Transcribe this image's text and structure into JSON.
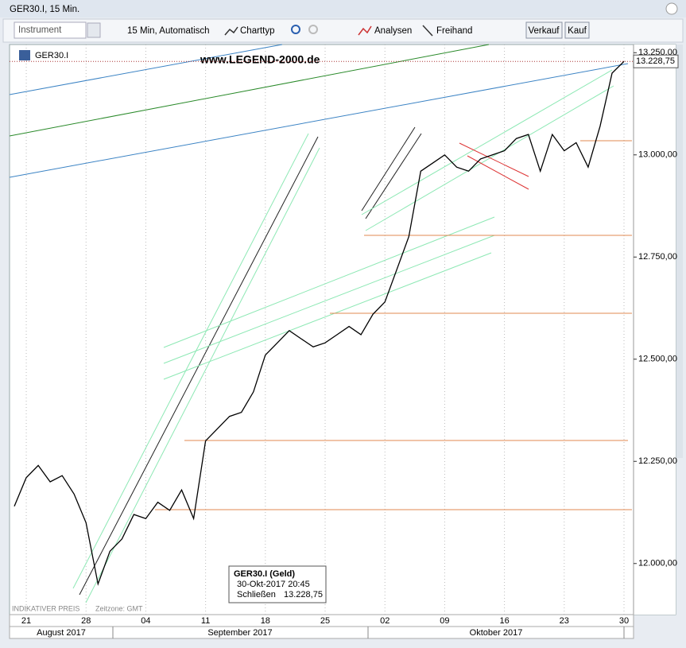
{
  "window_title": "GER30.I, 15 Min.",
  "toolbar": {
    "instrument": "Instrument",
    "interval": "15 Min,  Automatisch",
    "chart_type": "Charttyp",
    "analyses": "Analysen",
    "freehand": "Freihand",
    "sell": "Verkauf",
    "buy": "Kauf"
  },
  "watermark": "www.LEGEND-2000.de",
  "footer": {
    "indicative": "INDIKATIVER PREIS",
    "timezone": "Zeitzone: GMT"
  },
  "tooltip": {
    "title": "GER30.I (Geld)",
    "time": "30-Okt-2017 20:45",
    "close_label": "Schließen",
    "close": "13.228,75"
  },
  "months": [
    "August 2017",
    "September 2017",
    "Oktober 2017"
  ],
  "chart_data": {
    "type": "line",
    "x": [
      "2017-08-18",
      "2017-08-21",
      "2017-08-22",
      "2017-08-23",
      "2017-08-24",
      "2017-08-25",
      "2017-08-28",
      "2017-08-29",
      "2017-08-30",
      "2017-08-31",
      "2017-09-01",
      "2017-09-04",
      "2017-09-05",
      "2017-09-06",
      "2017-09-07",
      "2017-09-08",
      "2017-09-11",
      "2017-09-12",
      "2017-09-13",
      "2017-09-14",
      "2017-09-15",
      "2017-09-18",
      "2017-09-19",
      "2017-09-20",
      "2017-09-21",
      "2017-09-22",
      "2017-09-25",
      "2017-09-26",
      "2017-09-27",
      "2017-09-28",
      "2017-09-29",
      "2017-10-02",
      "2017-10-03",
      "2017-10-04",
      "2017-10-05",
      "2017-10-06",
      "2017-10-09",
      "2017-10-10",
      "2017-10-11",
      "2017-10-12",
      "2017-10-13",
      "2017-10-16",
      "2017-10-17",
      "2017-10-18",
      "2017-10-19",
      "2017-10-20",
      "2017-10-23",
      "2017-10-24",
      "2017-10-25",
      "2017-10-26",
      "2017-10-27",
      "2017-10-30"
    ],
    "series": [
      {
        "name": "GER30.I",
        "color": "#000000",
        "values": [
          12140,
          12210,
          12240,
          12200,
          12215,
          12170,
          12100,
          11950,
          12030,
          12060,
          12120,
          12110,
          12150,
          12130,
          12180,
          12110,
          12300,
          12330,
          12360,
          12370,
          12420,
          12510,
          12540,
          12570,
          12550,
          12530,
          12540,
          12560,
          12580,
          12560,
          12610,
          12640,
          12720,
          12800,
          12960,
          12980,
          13000,
          12970,
          12960,
          12990,
          13000,
          13010,
          13040,
          13050,
          12960,
          13050,
          13010,
          13030,
          12970,
          13070,
          13200,
          13228.75
        ]
      }
    ],
    "xlim": [
      "2017-08-18",
      "2017-10-30"
    ],
    "xticks": [
      {
        "value": "2017-08-21",
        "label": "21"
      },
      {
        "value": "2017-08-28",
        "label": "28"
      },
      {
        "value": "2017-09-04",
        "label": "04"
      },
      {
        "value": "2017-09-11",
        "label": "11"
      },
      {
        "value": "2017-09-18",
        "label": "18"
      },
      {
        "value": "2017-09-25",
        "label": "25"
      },
      {
        "value": "2017-10-02",
        "label": "02"
      },
      {
        "value": "2017-10-09",
        "label": "09"
      },
      {
        "value": "2017-10-16",
        "label": "16"
      },
      {
        "value": "2017-10-23",
        "label": "23"
      },
      {
        "value": "2017-10-30",
        "label": "30"
      }
    ],
    "ylim": [
      11875,
      13270
    ],
    "yticks": [
      {
        "value": 12000,
        "label": "12.000,00"
      },
      {
        "value": 12250,
        "label": "12.250,00"
      },
      {
        "value": 12500,
        "label": "12.500,00"
      },
      {
        "value": 12750,
        "label": "12.750,00"
      },
      {
        "value": 13000,
        "label": "13.000,00"
      },
      {
        "value": 13250,
        "label": "13.250,00"
      }
    ]
  }
}
